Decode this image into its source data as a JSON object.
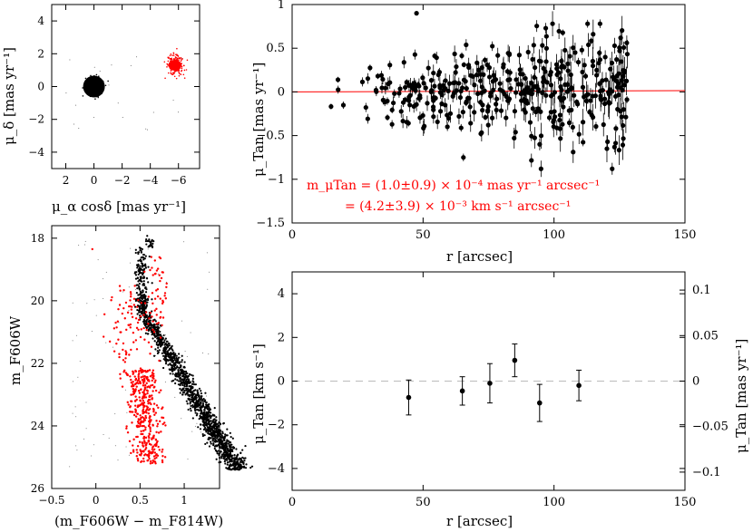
{
  "chart_data": [
    {
      "id": "pm_vpd",
      "type": "scatter",
      "xlabel": "μ_α cosδ [mas yr⁻¹]",
      "ylabel": "μ_δ [mas yr⁻¹]",
      "xlim": [
        3,
        -7.5
      ],
      "ylim": [
        -5,
        5
      ],
      "xticks": [
        "2",
        "0",
        "−2",
        "−4",
        "−6"
      ],
      "yticks": [
        "4",
        "2",
        "0",
        "−2",
        "−4"
      ],
      "series": [
        {
          "color": "#000000",
          "center": [
            0,
            0
          ],
          "spread": 0.18
        },
        {
          "color": "#ff0000",
          "center": [
            -5.75,
            1.3
          ],
          "spread": 0.22
        }
      ]
    },
    {
      "id": "tangential_pm_vs_radius",
      "type": "scatter",
      "xlabel": "r [arcsec]",
      "ylabel": "μ_Tan [mas yr⁻¹]",
      "xlim": [
        0,
        150
      ],
      "ylim": [
        -1.5,
        1
      ],
      "xticks": [
        "0",
        "50",
        "100",
        "150"
      ],
      "yticks": [
        "1",
        "0.5",
        "0",
        "−0.5",
        "−1",
        "−1.5"
      ],
      "fit_line": {
        "color": "#ff0000",
        "y0": 0.0,
        "slope": 0.0001
      },
      "annotation_line1": "m_μTan = (1.0±0.9) × 10⁻⁴ mas yr⁻¹ arcsec⁻¹",
      "annotation_line2": "= (4.2±3.9) × 10⁻³ km s⁻¹ arcsec⁻¹",
      "annotation_color": "#ff0000",
      "grid": false
    },
    {
      "id": "cmd",
      "type": "scatter",
      "xlabel": "(m_F606W − m_F814W)",
      "ylabel": "m_F606W",
      "xlim": [
        -0.5,
        1.4
      ],
      "ylim": [
        26,
        17.6
      ],
      "xticks": [
        "−0.5",
        "0",
        "0.5",
        "1"
      ],
      "yticks": [
        "18",
        "20",
        "22",
        "24",
        "26"
      ],
      "series": [
        {
          "color": "#000000",
          "role": "cluster sequence"
        },
        {
          "color": "#ff0000",
          "role": "field stars"
        }
      ]
    },
    {
      "id": "binned_tangential",
      "type": "scatter",
      "xlabel": "r [arcsec]",
      "ylabel": "μ_Tan [km s⁻¹]",
      "ylabel_right": "μ_Tan [mas yr⁻¹]",
      "xlim": [
        0,
        150
      ],
      "ylim": [
        -5,
        5
      ],
      "xticks": [
        "0",
        "50",
        "100",
        "150"
      ],
      "yticks": [
        "4",
        "2",
        "0",
        "−2",
        "−4"
      ],
      "yticks_right": [
        "0.1",
        "0.05",
        "0",
        "−0.05",
        "−0.1"
      ],
      "x": [
        44.5,
        65,
        75.5,
        85,
        94.5,
        109.5
      ],
      "y": [
        -0.75,
        -0.45,
        -0.1,
        0.95,
        -1.0,
        -0.2
      ],
      "yerr": [
        0.8,
        0.65,
        0.9,
        0.75,
        0.85,
        0.7
      ],
      "zero_line": {
        "color": "#bbbbbb",
        "style": "dashed"
      },
      "grid": false
    }
  ]
}
